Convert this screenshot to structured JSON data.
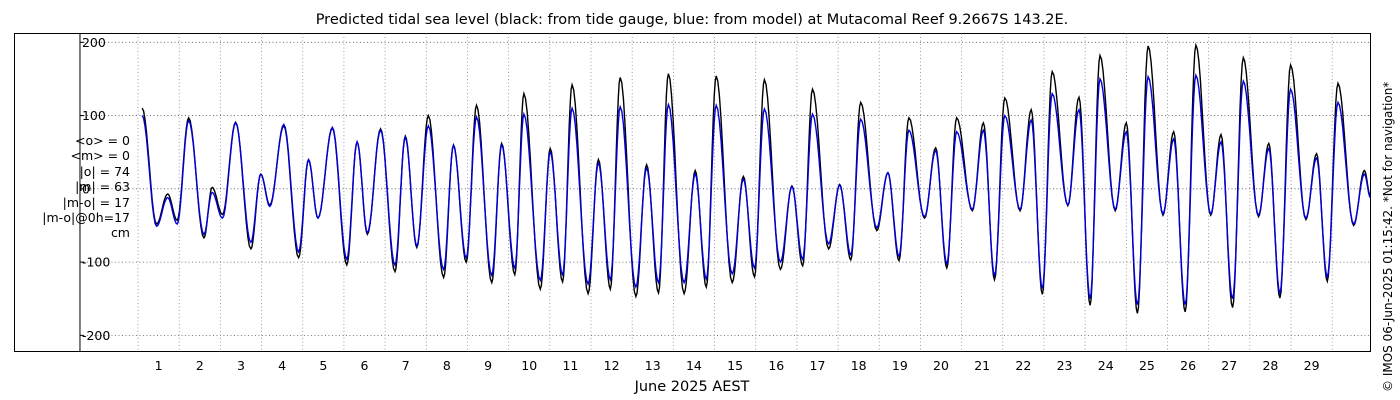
{
  "chart_data": {
    "type": "line",
    "title": "Predicted tidal sea level (black: from tide gauge, blue: from model) at Mutacomal Reef 9.2667S 143.2E.",
    "xlabel": "June 2025 AEST",
    "ylabel": "",
    "x_ticks": [
      "1",
      "2",
      "3",
      "4",
      "5",
      "6",
      "7",
      "8",
      "9",
      "10",
      "11",
      "12",
      "13",
      "14",
      "15",
      "16",
      "17",
      "18",
      "19",
      "20",
      "21",
      "22",
      "23",
      "24",
      "25",
      "26",
      "27",
      "28",
      "29"
    ],
    "y_ticks": [
      "-200",
      "-100",
      "0",
      "100",
      "200"
    ],
    "xlim": [
      -3,
      29.93
    ],
    "ylim": [
      -222,
      212
    ],
    "grid": true,
    "series": [
      {
        "name": "tide gauge",
        "color": "#000000",
        "extrema": [
          [
            0.1,
            110
          ],
          [
            0.45,
            -48
          ],
          [
            0.72,
            -7
          ],
          [
            0.95,
            -43
          ],
          [
            1.23,
            97
          ],
          [
            1.6,
            -67
          ],
          [
            1.8,
            2
          ],
          [
            2.05,
            -35
          ],
          [
            2.37,
            91
          ],
          [
            2.74,
            -82
          ],
          [
            2.98,
            20
          ],
          [
            3.2,
            -22
          ],
          [
            3.54,
            86
          ],
          [
            3.9,
            -94
          ],
          [
            4.14,
            39
          ],
          [
            4.37,
            -40
          ],
          [
            4.72,
            83
          ],
          [
            5.07,
            -104
          ],
          [
            5.32,
            64
          ],
          [
            5.57,
            -62
          ],
          [
            5.89,
            82
          ],
          [
            6.24,
            -113
          ],
          [
            6.49,
            72
          ],
          [
            6.77,
            -80
          ],
          [
            7.05,
            100
          ],
          [
            7.42,
            -121
          ],
          [
            7.66,
            60
          ],
          [
            7.97,
            -100
          ],
          [
            8.22,
            114
          ],
          [
            8.59,
            -128
          ],
          [
            8.83,
            62
          ],
          [
            9.15,
            -117
          ],
          [
            9.37,
            130
          ],
          [
            9.77,
            -137
          ],
          [
            10.01,
            55
          ],
          [
            10.31,
            -127
          ],
          [
            10.54,
            142
          ],
          [
            10.93,
            -143
          ],
          [
            11.18,
            40
          ],
          [
            11.47,
            -137
          ],
          [
            11.71,
            152
          ],
          [
            12.09,
            -147
          ],
          [
            12.35,
            33
          ],
          [
            12.64,
            -142
          ],
          [
            12.88,
            157
          ],
          [
            13.26,
            -143
          ],
          [
            13.53,
            25
          ],
          [
            13.8,
            -134
          ],
          [
            14.04,
            154
          ],
          [
            14.43,
            -128
          ],
          [
            14.7,
            17
          ],
          [
            14.97,
            -120
          ],
          [
            15.21,
            149
          ],
          [
            15.6,
            -110
          ],
          [
            15.88,
            4
          ],
          [
            16.14,
            -105
          ],
          [
            16.38,
            136
          ],
          [
            16.77,
            -82
          ],
          [
            17.04,
            6
          ],
          [
            17.31,
            -97
          ],
          [
            17.55,
            118
          ],
          [
            17.94,
            -57
          ],
          [
            18.21,
            22
          ],
          [
            18.48,
            -98
          ],
          [
            18.72,
            97
          ],
          [
            19.1,
            -40
          ],
          [
            19.37,
            56
          ],
          [
            19.64,
            -108
          ],
          [
            19.88,
            97
          ],
          [
            20.26,
            -30
          ],
          [
            20.53,
            90
          ],
          [
            20.8,
            -124
          ],
          [
            21.05,
            124
          ],
          [
            21.42,
            -30
          ],
          [
            21.69,
            108
          ],
          [
            21.96,
            -144
          ],
          [
            22.2,
            160
          ],
          [
            22.58,
            -23
          ],
          [
            22.85,
            125
          ],
          [
            23.12,
            -159
          ],
          [
            23.36,
            182
          ],
          [
            23.73,
            -30
          ],
          [
            24.0,
            90
          ],
          [
            24.27,
            -170
          ],
          [
            24.53,
            195
          ],
          [
            24.89,
            -36
          ],
          [
            25.15,
            78
          ],
          [
            25.43,
            -168
          ],
          [
            25.69,
            196
          ],
          [
            26.05,
            -36
          ],
          [
            26.3,
            74
          ],
          [
            26.58,
            -162
          ],
          [
            26.84,
            179
          ],
          [
            27.21,
            -38
          ],
          [
            27.46,
            62
          ],
          [
            27.73,
            -149
          ],
          [
            27.99,
            169
          ],
          [
            28.36,
            -42
          ],
          [
            28.62,
            48
          ],
          [
            28.88,
            -126
          ],
          [
            29.14,
            144
          ],
          [
            29.52,
            -50
          ],
          [
            29.78,
            25
          ],
          [
            29.93,
            -10
          ]
        ]
      },
      {
        "name": "model",
        "color": "#0000dd",
        "extrema": [
          [
            0.1,
            100
          ],
          [
            0.45,
            -51
          ],
          [
            0.72,
            -12
          ],
          [
            0.95,
            -48
          ],
          [
            1.23,
            93
          ],
          [
            1.6,
            -62
          ],
          [
            1.8,
            -5
          ],
          [
            2.05,
            -40
          ],
          [
            2.37,
            90
          ],
          [
            2.74,
            -73
          ],
          [
            2.98,
            20
          ],
          [
            3.2,
            -24
          ],
          [
            3.54,
            88
          ],
          [
            3.9,
            -86
          ],
          [
            4.14,
            40
          ],
          [
            4.37,
            -40
          ],
          [
            4.72,
            84
          ],
          [
            5.07,
            -96
          ],
          [
            5.32,
            64
          ],
          [
            5.57,
            -60
          ],
          [
            5.89,
            80
          ],
          [
            6.24,
            -104
          ],
          [
            6.49,
            70
          ],
          [
            6.77,
            -78
          ],
          [
            7.05,
            86
          ],
          [
            7.42,
            -110
          ],
          [
            7.66,
            59
          ],
          [
            7.97,
            -94
          ],
          [
            8.22,
            98
          ],
          [
            8.59,
            -118
          ],
          [
            8.83,
            60
          ],
          [
            9.15,
            -108
          ],
          [
            9.37,
            102
          ],
          [
            9.77,
            -125
          ],
          [
            10.01,
            50
          ],
          [
            10.31,
            -117
          ],
          [
            10.54,
            110
          ],
          [
            10.93,
            -130
          ],
          [
            11.18,
            35
          ],
          [
            11.47,
            -124
          ],
          [
            11.71,
            112
          ],
          [
            12.09,
            -134
          ],
          [
            12.35,
            28
          ],
          [
            12.64,
            -128
          ],
          [
            12.88,
            115
          ],
          [
            13.26,
            -128
          ],
          [
            13.53,
            20
          ],
          [
            13.8,
            -123
          ],
          [
            14.04,
            114
          ],
          [
            14.43,
            -116
          ],
          [
            14.7,
            13
          ],
          [
            14.97,
            -108
          ],
          [
            15.21,
            109
          ],
          [
            15.6,
            -100
          ],
          [
            15.88,
            3
          ],
          [
            16.14,
            -96
          ],
          [
            16.38,
            102
          ],
          [
            16.77,
            -75
          ],
          [
            17.04,
            5
          ],
          [
            17.31,
            -90
          ],
          [
            17.55,
            95
          ],
          [
            17.94,
            -53
          ],
          [
            18.21,
            22
          ],
          [
            18.48,
            -92
          ],
          [
            18.72,
            80
          ],
          [
            19.1,
            -38
          ],
          [
            19.37,
            52
          ],
          [
            19.64,
            -102
          ],
          [
            19.88,
            78
          ],
          [
            20.26,
            -28
          ],
          [
            20.53,
            80
          ],
          [
            20.8,
            -118
          ],
          [
            21.05,
            100
          ],
          [
            21.42,
            -28
          ],
          [
            21.69,
            94
          ],
          [
            21.96,
            -136
          ],
          [
            22.2,
            130
          ],
          [
            22.58,
            -22
          ],
          [
            22.85,
            108
          ],
          [
            23.12,
            -150
          ],
          [
            23.36,
            150
          ],
          [
            23.73,
            -28
          ],
          [
            24.0,
            78
          ],
          [
            24.27,
            -158
          ],
          [
            24.53,
            153
          ],
          [
            24.89,
            -34
          ],
          [
            25.15,
            68
          ],
          [
            25.43,
            -158
          ],
          [
            25.69,
            155
          ],
          [
            26.05,
            -34
          ],
          [
            26.3,
            64
          ],
          [
            26.58,
            -150
          ],
          [
            26.84,
            147
          ],
          [
            27.21,
            -36
          ],
          [
            27.46,
            55
          ],
          [
            27.73,
            -142
          ],
          [
            27.99,
            136
          ],
          [
            28.36,
            -40
          ],
          [
            28.62,
            42
          ],
          [
            28.88,
            -120
          ],
          [
            29.14,
            118
          ],
          [
            29.52,
            -48
          ],
          [
            29.78,
            20
          ],
          [
            29.93,
            -12
          ]
        ]
      }
    ]
  },
  "stats": {
    "mean_o": "<o> = 0",
    "mean_m": "<m> = 0",
    "abs_o": "|o| = 74",
    "abs_m": "|m| = 63",
    "abs_mo": "|m-o| = 17",
    "abs_mo_0h": "|m-o|@0h=17",
    "unit": "cm"
  },
  "copyright": "© IMOS 06-Jun-2025 01:15:42. *Not for navigation*"
}
